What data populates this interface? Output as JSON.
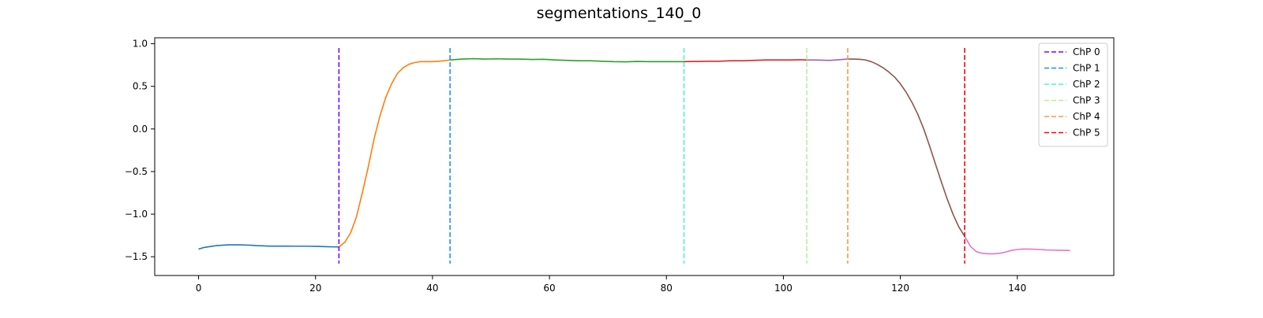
{
  "chart_data": {
    "type": "line",
    "title": "segmentations_140_0",
    "xlabel": "",
    "ylabel": "",
    "xlim": [
      -7.5,
      156.5
    ],
    "ylim": [
      -1.72,
      1.07
    ],
    "grid": false,
    "legend_placement": "top-right",
    "x_ticks": [
      0,
      20,
      40,
      60,
      80,
      100,
      120,
      140
    ],
    "y_ticks": [
      1.0,
      0.5,
      0.0,
      -0.5,
      -1.0,
      -1.5
    ],
    "y_tick_labels": [
      "1.0",
      "0.5",
      "0.0",
      "−0.5",
      "−1.0",
      "−1.5"
    ],
    "series": [
      {
        "color": "#1f77b4",
        "x": [
          0,
          1,
          2,
          3,
          4,
          5,
          6,
          7,
          8,
          9,
          10,
          11,
          12,
          13,
          14,
          15,
          16,
          17,
          18,
          19,
          20,
          21,
          22,
          23,
          24
        ],
        "y": [
          -1.41,
          -1.39,
          -1.38,
          -1.37,
          -1.365,
          -1.36,
          -1.36,
          -1.36,
          -1.362,
          -1.365,
          -1.37,
          -1.372,
          -1.375,
          -1.375,
          -1.375,
          -1.375,
          -1.376,
          -1.376,
          -1.376,
          -1.377,
          -1.378,
          -1.38,
          -1.382,
          -1.384,
          -1.385
        ]
      },
      {
        "color": "#ff7f0e",
        "x": [
          24,
          25,
          26,
          27,
          28,
          29,
          30,
          31,
          32,
          33,
          34,
          35,
          36,
          37,
          38,
          39,
          40,
          41,
          42,
          43
        ],
        "y": [
          -1.385,
          -1.33,
          -1.22,
          -1.03,
          -0.75,
          -0.45,
          -0.12,
          0.15,
          0.37,
          0.53,
          0.65,
          0.72,
          0.76,
          0.78,
          0.79,
          0.79,
          0.79,
          0.795,
          0.8,
          0.81
        ]
      },
      {
        "color": "#2ca02c",
        "x": [
          43,
          45,
          47,
          49,
          51,
          53,
          55,
          57,
          59,
          61,
          63,
          65,
          67,
          69,
          71,
          73,
          75,
          77,
          79,
          81,
          83
        ],
        "y": [
          0.81,
          0.82,
          0.825,
          0.82,
          0.823,
          0.82,
          0.82,
          0.815,
          0.818,
          0.81,
          0.805,
          0.8,
          0.8,
          0.795,
          0.79,
          0.788,
          0.792,
          0.79,
          0.79,
          0.79,
          0.79
        ]
      },
      {
        "color": "#d62728",
        "x": [
          83,
          85,
          87,
          89,
          91,
          93,
          95,
          97,
          99,
          101,
          103,
          104
        ],
        "y": [
          0.79,
          0.792,
          0.795,
          0.795,
          0.8,
          0.8,
          0.805,
          0.81,
          0.81,
          0.81,
          0.812,
          0.81
        ]
      },
      {
        "color": "#9467bd",
        "x": [
          104,
          105,
          106,
          107,
          108,
          109,
          110,
          111
        ],
        "y": [
          0.81,
          0.81,
          0.808,
          0.806,
          0.805,
          0.81,
          0.815,
          0.82
        ]
      },
      {
        "color": "#8c564b",
        "x": [
          111,
          112,
          113,
          114,
          115,
          116,
          117,
          118,
          119,
          120,
          121,
          122,
          123,
          124,
          125,
          126,
          127,
          128,
          129,
          130,
          131
        ],
        "y": [
          0.82,
          0.82,
          0.818,
          0.81,
          0.79,
          0.76,
          0.72,
          0.67,
          0.61,
          0.53,
          0.43,
          0.31,
          0.17,
          0.0,
          -0.2,
          -0.41,
          -0.62,
          -0.82,
          -1.0,
          -1.15,
          -1.26
        ]
      },
      {
        "color": "#e377c2",
        "x": [
          131,
          132,
          133,
          134,
          135,
          136,
          137,
          138,
          139,
          140,
          141,
          142,
          143,
          144,
          145,
          146,
          147,
          148,
          149
        ],
        "y": [
          -1.26,
          -1.38,
          -1.44,
          -1.46,
          -1.465,
          -1.465,
          -1.46,
          -1.445,
          -1.425,
          -1.415,
          -1.41,
          -1.41,
          -1.412,
          -1.415,
          -1.42,
          -1.422,
          -1.424,
          -1.425,
          -1.426
        ]
      }
    ],
    "changepoints": [
      {
        "name": "ChP 0",
        "x": 24,
        "color": "#8000ff"
      },
      {
        "name": "ChP 1",
        "x": 43,
        "color": "#1996f3"
      },
      {
        "name": "ChP 2",
        "x": 83,
        "color": "#4df3ce"
      },
      {
        "name": "ChP 3",
        "x": 104,
        "color": "#b2f396"
      },
      {
        "name": "ChP 4",
        "x": 111,
        "color": "#ff964f"
      },
      {
        "name": "ChP 5",
        "x": 131,
        "color": "#ff0000"
      }
    ],
    "changepoint_y_range": [
      -1.58,
      0.95
    ]
  }
}
